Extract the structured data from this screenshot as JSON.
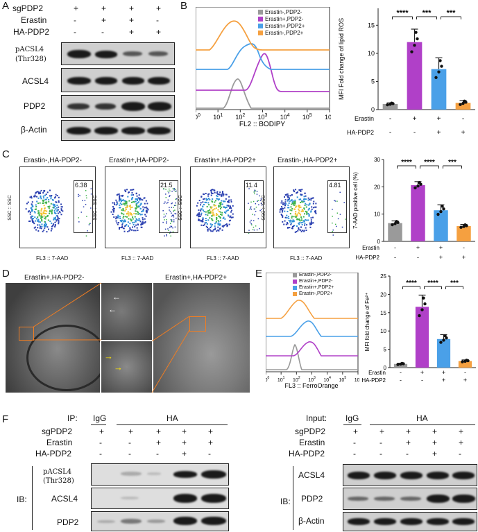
{
  "panel_letters": {
    "a": "A",
    "b": "B",
    "c": "C",
    "d": "D",
    "e": "E",
    "f": "F"
  },
  "panel_a": {
    "rows": [
      "sgPDP2",
      "Erastin",
      "HA-PDP2"
    ],
    "signs": [
      [
        "+",
        "+",
        "+",
        "+"
      ],
      [
        "-",
        "+",
        "+",
        "-"
      ],
      [
        "-",
        "-",
        "+",
        "+"
      ]
    ],
    "blots": [
      "pACSL4",
      "(Thr328)",
      "ACSL4",
      "PDP2",
      "β-Actin"
    ]
  },
  "panel_b_hist": {
    "legend": [
      "Erastin-,PDP2-",
      "Erastin+,PDP2-",
      "Erastin+,PDP2+",
      "Erastin-,PDP2+"
    ],
    "colors": [
      "#9a9a9a",
      "#b040c8",
      "#4aa0e8",
      "#f5a040"
    ],
    "xaxis": "FL2 :: BODIPY",
    "ticks": [
      "0",
      "1",
      "2",
      "3",
      "4",
      "5",
      "6"
    ]
  },
  "chart_data": [
    {
      "type": "bar",
      "ylabel": "MFI Fold change of lipid ROS",
      "categories": [
        "Erastin-,HA-PDP2-",
        "Erastin+,HA-PDP2-",
        "Erastin+,HA-PDP2+",
        "Erastin-,HA-PDP2+"
      ],
      "values": [
        1.0,
        12.0,
        7.2,
        1.2
      ],
      "errors": [
        0.2,
        2.3,
        2.0,
        0.4
      ],
      "ylim": [
        0,
        18
      ],
      "yticks": [
        "0",
        "5",
        "10",
        "15"
      ],
      "colors": [
        "#9a9a9a",
        "#b040c8",
        "#4aa0e8",
        "#f5a040"
      ],
      "sig": [
        "****",
        "***",
        "***"
      ],
      "rows": [
        {
          "name": "Erastin",
          "signs": [
            "-",
            "+",
            "+",
            "-"
          ]
        },
        {
          "name": "HA-PDP2",
          "signs": [
            "-",
            "-",
            "+",
            "+"
          ]
        }
      ]
    },
    {
      "type": "bar",
      "ylabel": "7-AAD positive cell (%)",
      "categories": [
        "Erastin-,HA-PDP2-",
        "Erastin+,HA-PDP2-",
        "Erastin+,HA-PDP2+",
        "Erastin-,HA-PDP2+"
      ],
      "values": [
        6.7,
        20.6,
        11.4,
        5.6
      ],
      "errors": [
        0.8,
        1.3,
        2.0,
        0.6
      ],
      "ylim": [
        0,
        30
      ],
      "yticks": [
        "0",
        "10",
        "20",
        "30"
      ],
      "colors": [
        "#9a9a9a",
        "#b040c8",
        "#4aa0e8",
        "#f5a040"
      ],
      "sig": [
        "****",
        "****",
        "***"
      ],
      "rows": [
        {
          "name": "Erastin",
          "signs": [
            "-",
            "+",
            "+",
            "-"
          ]
        },
        {
          "name": "HA-PDP2",
          "signs": [
            "-",
            "-",
            "+",
            "+"
          ]
        }
      ]
    },
    {
      "type": "bar",
      "ylabel": "MFI fold change of Fe²⁺",
      "categories": [
        "Erastin-,PDP2-",
        "Erastin+,PDP2-",
        "Erastin+,PDP2+",
        "Erastin-,PDP2+"
      ],
      "values": [
        1.0,
        16.6,
        7.8,
        1.8
      ],
      "errors": [
        0.2,
        3.2,
        1.2,
        0.3
      ],
      "ylim": [
        0,
        25
      ],
      "yticks": [
        "0",
        "5",
        "10",
        "15",
        "20",
        "25"
      ],
      "colors": [
        "#9a9a9a",
        "#b040c8",
        "#4aa0e8",
        "#f5a040"
      ],
      "sig": [
        "****",
        "****",
        "***"
      ],
      "rows": [
        {
          "name": "Erastin",
          "signs": [
            "-",
            "+",
            "+",
            "-"
          ]
        },
        {
          "name": "HA-PDP2",
          "signs": [
            "-",
            "-",
            "+",
            "+"
          ]
        }
      ]
    }
  ],
  "panel_c": {
    "titles": [
      "Erastin-,HA-PDP2-",
      "Erastin+,HA-PDP2-",
      "Erastin+,HA-PDP2+",
      "Erastin-,HA-PDP2+"
    ],
    "gates": [
      "6.38",
      "21.5",
      "11.4",
      "4.81"
    ],
    "ylabel": "SSC :: SSC",
    "xlabel": "FL3 :: 7-AAD"
  },
  "panel_d": {
    "left_title": "Erastin+,HA-PDP2-",
    "right_title": "Erastin+,HA-PDP2+"
  },
  "panel_e_hist": {
    "legend": [
      "Erastin-,PDP2-",
      "Erastin+,PDP2-",
      "Erastin+,PDP2+",
      "Erastin-,PDP2+"
    ],
    "xaxis": "FL3 :: FerroOrange",
    "ticks": [
      "0",
      "1",
      "2",
      "3",
      "4",
      "5",
      "6"
    ]
  },
  "panel_f": {
    "ip_label": "IP:",
    "input_label": "Input:",
    "igg": "IgG",
    "ha": "HA",
    "rows": [
      "sgPDP2",
      "Erastin",
      "HA-PDP2"
    ],
    "signs": [
      [
        "+",
        "+",
        "+",
        "+",
        "+"
      ],
      [
        "-",
        "-",
        "+",
        "+",
        "+"
      ],
      [
        "-",
        "-",
        "-",
        "+",
        "-"
      ]
    ],
    "ib": "IB:",
    "left_blots": [
      "pACSL4",
      "(Thr328)",
      "ACSL4",
      "PDP2"
    ],
    "right_blots": [
      "ACSL4",
      "PDP2",
      "β-Actin"
    ]
  }
}
